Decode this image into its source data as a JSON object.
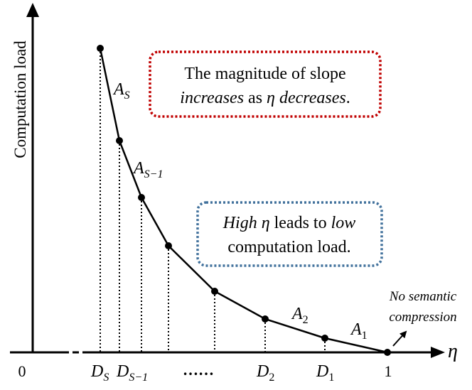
{
  "y_axis_label": "Computation load",
  "x_axis_symbol": "η",
  "origin_label": "0",
  "one_label": "1",
  "ellipsis": "……",
  "x_tick_labels": [
    {
      "base": "D",
      "sub": "S"
    },
    {
      "base": "D",
      "sub": "S−1"
    },
    {
      "base": "D",
      "sub": "2"
    },
    {
      "base": "D",
      "sub": "1"
    }
  ],
  "segment_labels": [
    {
      "base": "A",
      "sub": "S"
    },
    {
      "base": "A",
      "sub": "S−1"
    },
    {
      "base": "A",
      "sub": "2"
    },
    {
      "base": "A",
      "sub": "1"
    }
  ],
  "red_box": {
    "line1": "The magnitude of slope",
    "line2_part1": "increases",
    "line2_part2": " as ",
    "line2_part3": "η decreases",
    "line2_part4": ".",
    "border_color": "#c00000"
  },
  "blue_box": {
    "line1_part1": "High η",
    "line1_part2": " leads to ",
    "line1_part3": "low",
    "line2": "computation load.",
    "border_color": "#41719c"
  },
  "annotation": {
    "line1": "No semantic",
    "line2": "compression"
  }
}
